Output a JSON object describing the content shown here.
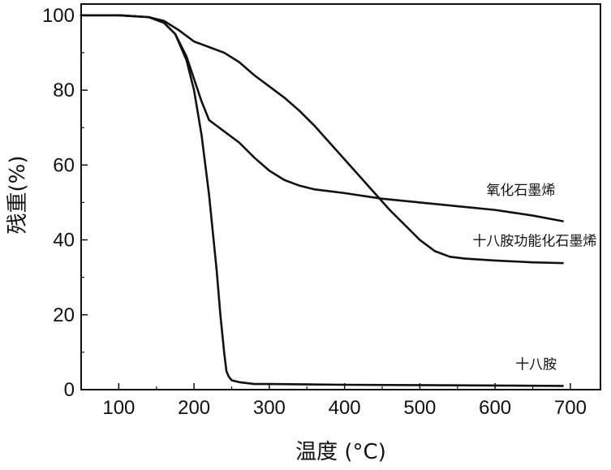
{
  "chart_data": {
    "type": "line",
    "xlabel": "温度 (°C)",
    "ylabel": "残重(%)",
    "xlim": [
      50,
      740
    ],
    "ylim": [
      0,
      103
    ],
    "xticks": [
      100,
      200,
      300,
      400,
      500,
      600,
      700
    ],
    "yticks": [
      0,
      20,
      40,
      60,
      80,
      100
    ],
    "grid": false,
    "legend": "none",
    "series": [
      {
        "name": "氧化石墨烯",
        "x": [
          50,
          100,
          140,
          160,
          175,
          190,
          200,
          210,
          220,
          230,
          240,
          260,
          280,
          300,
          320,
          340,
          360,
          380,
          400,
          450,
          500,
          550,
          600,
          650,
          690
        ],
        "y": [
          100,
          100,
          99.5,
          98,
          95,
          89,
          83,
          77,
          72,
          70.5,
          69,
          66,
          62,
          58.5,
          56,
          54.5,
          53.5,
          53,
          52.5,
          51,
          50,
          49,
          48,
          46.5,
          45
        ]
      },
      {
        "name": "十八胺功能化石墨烯",
        "x": [
          50,
          100,
          140,
          160,
          180,
          200,
          220,
          240,
          260,
          280,
          300,
          320,
          340,
          360,
          380,
          400,
          420,
          440,
          460,
          480,
          500,
          520,
          540,
          560,
          600,
          650,
          690
        ],
        "y": [
          100,
          100,
          99.5,
          98.5,
          96,
          93,
          91.5,
          90,
          87.5,
          84,
          81,
          78,
          74.5,
          70.5,
          66,
          61.5,
          57,
          52.5,
          48,
          44,
          40,
          37,
          35.5,
          35,
          34.5,
          34,
          33.8
        ]
      },
      {
        "name": "十八胺",
        "x": [
          50,
          100,
          140,
          160,
          175,
          190,
          200,
          210,
          220,
          230,
          235,
          240,
          243,
          246,
          250,
          260,
          280,
          300,
          400,
          500,
          600,
          690
        ],
        "y": [
          100,
          100,
          99.5,
          98,
          95,
          88,
          80,
          68,
          52,
          32,
          20,
          10,
          5,
          3.5,
          2.5,
          2,
          1.5,
          1.5,
          1.3,
          1.2,
          1.1,
          1
        ]
      }
    ],
    "labels": [
      {
        "series": "氧化石墨烯",
        "text": "氧化石墨烯",
        "x": 680,
        "y": 52
      },
      {
        "series": "十八胺功能化石墨烯",
        "text": "十八胺功能化石墨烯",
        "x": 735,
        "y": 38.5
      },
      {
        "series": "十八胺",
        "text": "十八胺",
        "x": 682,
        "y": 5.5
      }
    ]
  }
}
